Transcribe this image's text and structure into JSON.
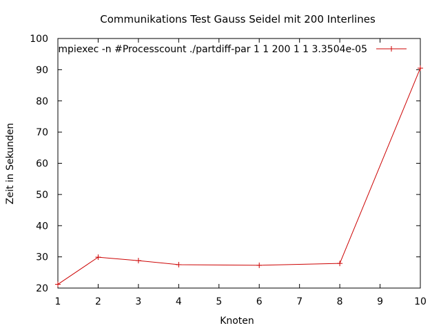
{
  "chart_data": {
    "type": "line",
    "title": "Communikations Test Gauss Seidel mit 200 Interlines",
    "xlabel": "Knoten",
    "ylabel": "Zeit in Sekunden",
    "xlim": [
      1,
      10
    ],
    "ylim": [
      20,
      100
    ],
    "xticks": [
      1,
      2,
      3,
      4,
      5,
      6,
      7,
      8,
      9,
      10
    ],
    "yticks": [
      20,
      30,
      40,
      50,
      60,
      70,
      80,
      90,
      100
    ],
    "grid": false,
    "legend_position": "top-right",
    "series": [
      {
        "name": "mpiexec -n #Processcount ./partdiff-par 1 1 200 1 1 3.3504e-05",
        "color": "#cc0000",
        "marker": "plus",
        "x": [
          1,
          2,
          3,
          4,
          6,
          8,
          10
        ],
        "y": [
          21.2,
          29.9,
          28.8,
          27.5,
          27.3,
          27.9,
          90.5
        ]
      }
    ]
  }
}
